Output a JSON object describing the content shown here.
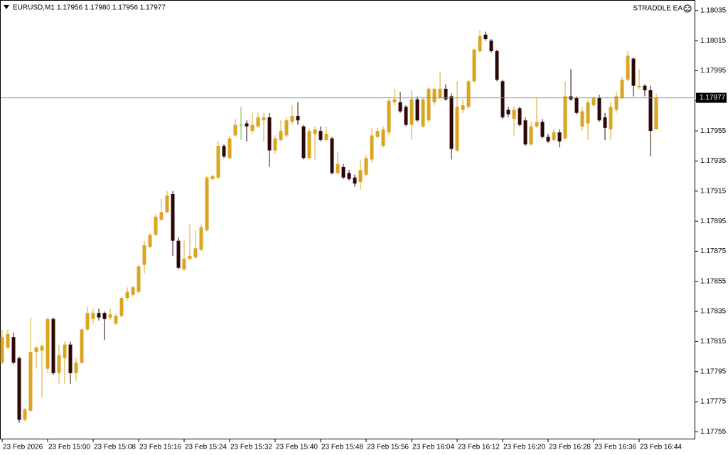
{
  "chart_data": {
    "type": "candlestick",
    "symbol": "EURUSD,M1",
    "quote": "1.17956 1.17980 1.17956 1.17977",
    "ea_label": "STRADDLE EA",
    "up_color": "#daa520",
    "down_color": "#2e0808",
    "doji_color": "#5ccd2a",
    "price_line_color": "#7f9a96",
    "ylim": [
      1.1775,
      1.18042
    ],
    "yticks": [
      1.18035,
      1.18015,
      1.17995,
      1.17975,
      1.17955,
      1.17935,
      1.17915,
      1.17895,
      1.17875,
      1.17855,
      1.17835,
      1.17815,
      1.17795,
      1.17775,
      1.17755
    ],
    "categories": [
      "23 Feb 2026",
      null,
      null,
      null,
      null,
      null,
      null,
      null,
      "23 Feb 15:00",
      null,
      null,
      null,
      null,
      null,
      null,
      null,
      "23 Feb 15:08",
      null,
      null,
      null,
      null,
      null,
      null,
      null,
      "23 Feb 15:16",
      null,
      null,
      null,
      null,
      null,
      null,
      null,
      "23 Feb 15:24",
      null,
      null,
      null,
      null,
      null,
      null,
      null,
      "23 Feb 15:32",
      null,
      null,
      null,
      null,
      null,
      null,
      null,
      "23 Feb 15:40",
      null,
      null,
      null,
      null,
      null,
      null,
      null,
      "23 Feb 15:48",
      null,
      null,
      null,
      null,
      null,
      null,
      null,
      "23 Feb 15:56",
      null,
      null,
      null,
      null,
      null,
      null,
      null,
      "23 Feb 16:04",
      null,
      null,
      null,
      null,
      null,
      null,
      null,
      "23 Feb 16:12",
      null,
      null,
      null,
      null,
      null,
      null,
      null,
      "23 Feb 16:20",
      null,
      null,
      null,
      null,
      null,
      null,
      null,
      "23 Feb 16:28",
      null,
      null,
      null,
      null,
      null,
      null,
      null,
      "23 Feb 16:36",
      null,
      null,
      null,
      null,
      null,
      null,
      null,
      "23 Feb 16:44",
      null,
      null,
      null
    ],
    "open": [
      1.17801,
      1.17811,
      1.17818,
      1.17804,
      1.17763,
      1.17769,
      1.17808,
      1.17809,
      1.17797,
      1.1783,
      1.17794,
      1.17804,
      1.17813,
      1.17794,
      1.17801,
      1.17823,
      1.1783,
      1.17834,
      1.17834,
      1.17831,
      1.17827,
      1.17832,
      1.17844,
      1.17846,
      1.17848,
      1.17866,
      1.17878,
      1.17886,
      1.17896,
      1.17901,
      1.17913,
      1.17882,
      1.17863,
      1.1787,
      1.17871,
      1.17876,
      1.17889,
      1.17923,
      1.17924,
      1.17945,
      1.17937,
      1.17952,
      1.17959,
      1.1796,
      1.17955,
      1.17958,
      1.17962,
      1.17964,
      1.17942,
      1.17949,
      1.17952,
      1.17961,
      1.17965,
      1.17958,
      1.17937,
      1.17953,
      1.17955,
      1.17949,
      1.1795,
      1.17927,
      1.17931,
      1.17927,
      1.17924,
      1.17921,
      1.17926,
      1.17936,
      1.17951,
      1.17945,
      1.17954,
      1.17974,
      1.17974,
      1.17971,
      1.17959,
      1.17976,
      1.17958,
      1.17962,
      1.17974,
      1.17977,
      1.17983,
      1.17978,
      1.17942,
      1.17969,
      1.17971,
      1.17988,
      1.18008,
      1.18019,
      1.18015,
      1.18008,
      1.17988,
      1.17969,
      1.17963,
      1.1797,
      1.17962,
      1.17946,
      1.17958,
      1.17961,
      1.17951,
      1.17949,
      1.17954,
      1.1795,
      1.17978,
      1.17977,
      1.17958,
      1.1796,
      1.17972,
      1.17977,
      1.17964,
      1.17956,
      1.17969,
      1.17977,
      1.17989,
      1.18003,
      1.17984,
      1.17985,
      1.17982,
      1.17956
    ],
    "high": [
      1.17823,
      1.17823,
      1.17821,
      1.17805,
      1.17771,
      1.17831,
      1.17812,
      1.17813,
      1.17831,
      1.17831,
      1.17813,
      1.17815,
      1.17815,
      1.17804,
      1.17824,
      1.17838,
      1.17837,
      1.17837,
      1.17835,
      1.17837,
      1.17834,
      1.17845,
      1.17851,
      1.17852,
      1.17866,
      1.17882,
      1.17887,
      1.179,
      1.1791,
      1.17915,
      1.17915,
      1.17884,
      1.17882,
      1.17893,
      1.17889,
      1.17893,
      1.17925,
      1.17926,
      1.17948,
      1.17946,
      1.17952,
      1.17963,
      1.17971,
      1.17962,
      1.17967,
      1.17967,
      1.17967,
      1.17967,
      1.17952,
      1.17962,
      1.17964,
      1.17972,
      1.17974,
      1.17959,
      1.17957,
      1.17958,
      1.17958,
      1.17958,
      1.17951,
      1.17941,
      1.17933,
      1.17929,
      1.17926,
      1.17936,
      1.17939,
      1.17957,
      1.17957,
      1.17958,
      1.17977,
      1.17983,
      1.17981,
      1.17972,
      1.17982,
      1.17978,
      1.17977,
      1.17984,
      1.17984,
      1.17994,
      1.17986,
      1.1798,
      1.17988,
      1.17976,
      1.17989,
      1.1801,
      1.18022,
      1.18021,
      1.18016,
      1.18009,
      1.17989,
      1.17971,
      1.17971,
      1.17971,
      1.17964,
      1.17961,
      1.17977,
      1.17963,
      1.17953,
      1.17956,
      1.17956,
      1.17988,
      1.17996,
      1.17978,
      1.17971,
      1.17976,
      1.17978,
      1.17979,
      1.17967,
      1.17974,
      1.17981,
      1.17991,
      1.18008,
      1.18004,
      1.17996,
      1.17986,
      1.17985,
      1.1798
    ],
    "low": [
      1.178,
      1.1781,
      1.178,
      1.17761,
      1.17762,
      1.17768,
      1.17797,
      1.17778,
      1.17794,
      1.17793,
      1.17787,
      1.17787,
      1.17787,
      1.17789,
      1.178,
      1.17822,
      1.17827,
      1.17829,
      1.17816,
      1.17829,
      1.17826,
      1.17831,
      1.17842,
      1.17845,
      1.17847,
      1.1786,
      1.17877,
      1.17885,
      1.17895,
      1.179,
      1.17872,
      1.17863,
      1.17862,
      1.17869,
      1.1787,
      1.17875,
      1.17888,
      1.17922,
      1.17923,
      1.17937,
      1.17936,
      1.17951,
      1.17949,
      1.17948,
      1.17953,
      1.17957,
      1.17948,
      1.17931,
      1.1794,
      1.17948,
      1.17951,
      1.17959,
      1.17959,
      1.17936,
      1.17936,
      1.17936,
      1.17948,
      1.17948,
      1.17926,
      1.17926,
      1.17923,
      1.17922,
      1.17918,
      1.17916,
      1.17925,
      1.17934,
      1.1795,
      1.17944,
      1.17952,
      1.17972,
      1.17967,
      1.17958,
      1.17949,
      1.17961,
      1.17957,
      1.17961,
      1.17972,
      1.17976,
      1.17975,
      1.17936,
      1.17941,
      1.17967,
      1.1797,
      1.17987,
      1.18007,
      1.18015,
      1.18007,
      1.17988,
      1.17963,
      1.17964,
      1.17952,
      1.17958,
      1.17945,
      1.17945,
      1.17957,
      1.1795,
      1.17947,
      1.17948,
      1.17944,
      1.17949,
      1.17975,
      1.17966,
      1.17955,
      1.17949,
      1.17971,
      1.17961,
      1.17949,
      1.17949,
      1.17967,
      1.17976,
      1.17988,
      1.17978,
      1.17983,
      1.17978,
      1.17938,
      1.17956
    ],
    "close": [
      1.17818,
      1.1782,
      1.17801,
      1.17763,
      1.1777,
      1.17808,
      1.17811,
      1.17812,
      1.1783,
      1.17794,
      1.17806,
      1.17813,
      1.17794,
      1.17801,
      1.17823,
      1.17834,
      1.17834,
      1.17831,
      1.1783,
      1.17833,
      1.17832,
      1.17844,
      1.17848,
      1.17851,
      1.17865,
      1.17879,
      1.17886,
      1.17898,
      1.17901,
      1.17912,
      1.17882,
      1.17864,
      1.1787,
      1.17872,
      1.17877,
      1.17891,
      1.17924,
      1.17925,
      1.17945,
      1.17938,
      1.1795,
      1.17959,
      1.17959,
      1.17958,
      1.17959,
      1.17964,
      1.17964,
      1.17942,
      1.1795,
      1.17955,
      1.17962,
      1.17965,
      1.17962,
      1.17937,
      1.17955,
      1.17956,
      1.17949,
      1.17953,
      1.17927,
      1.17933,
      1.17924,
      1.17923,
      1.1792,
      1.17929,
      1.17937,
      1.17952,
      1.17955,
      1.17956,
      1.17975,
      1.17976,
      1.17968,
      1.17959,
      1.17976,
      1.17962,
      1.17976,
      1.17983,
      1.17983,
      1.17983,
      1.17976,
      1.17943,
      1.17971,
      1.17972,
      1.17988,
      1.18009,
      1.18018,
      1.18016,
      1.18008,
      1.17989,
      1.17964,
      1.17966,
      1.17969,
      1.17959,
      1.17946,
      1.17958,
      1.17961,
      1.17951,
      1.17948,
      1.17954,
      1.17948,
      1.17978,
      1.17976,
      1.17967,
      1.17968,
      1.17974,
      1.17977,
      1.17962,
      1.17957,
      1.17971,
      1.17978,
      1.17989,
      1.18005,
      1.17985,
      1.17985,
      1.17982,
      1.17955,
      1.17977
    ]
  }
}
